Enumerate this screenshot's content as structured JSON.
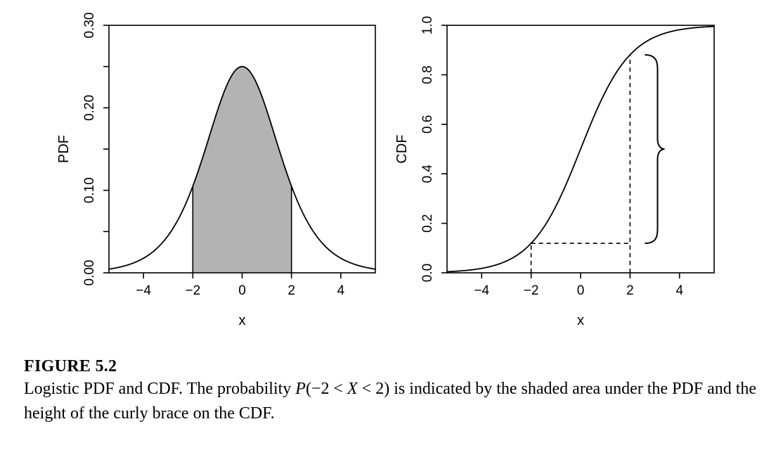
{
  "chart_data": [
    {
      "type": "line",
      "name": "logistic-pdf",
      "function": "pdf",
      "title": "",
      "xlabel": "x",
      "ylabel": "PDF",
      "xlim": [
        -5.4,
        5.4
      ],
      "ylim": [
        0,
        0.3
      ],
      "x_ticks": [
        -4,
        -2,
        0,
        2,
        4
      ],
      "x_tick_labels": [
        "−4",
        "−2",
        "0",
        "2",
        "4"
      ],
      "y_ticks": [
        0,
        0.05,
        0.1,
        0.15,
        0.2,
        0.25,
        0.3
      ],
      "y_tick_labels": [
        "0.00",
        "",
        "0.10",
        "",
        "0.20",
        "",
        "0.30"
      ],
      "shaded_interval": [
        -2,
        2
      ],
      "peak": {
        "x": 0,
        "y": 0.25
      },
      "series": [
        {
          "name": "PDF",
          "x": [
            -5.4,
            -5,
            -4,
            -3,
            -2,
            -1,
            0,
            1,
            2,
            3,
            4,
            5,
            5.4
          ],
          "y": [
            0.0044,
            0.0066,
            0.0177,
            0.0452,
            0.105,
            0.1966,
            0.25,
            0.1966,
            0.105,
            0.0452,
            0.0177,
            0.0066,
            0.0044
          ]
        }
      ]
    },
    {
      "type": "line",
      "name": "logistic-cdf",
      "function": "cdf",
      "title": "",
      "xlabel": "x",
      "ylabel": "CDF",
      "xlim": [
        -5.4,
        5.4
      ],
      "ylim": [
        0,
        1.0
      ],
      "x_ticks": [
        -4,
        -2,
        0,
        2,
        4
      ],
      "x_tick_labels": [
        "−4",
        "−2",
        "0",
        "2",
        "4"
      ],
      "y_ticks": [
        0,
        0.2,
        0.4,
        0.6,
        0.8,
        1.0
      ],
      "y_tick_labels": [
        "0.0",
        "0.2",
        "0.4",
        "0.6",
        "0.8",
        "1.0"
      ],
      "dashed_markers": {
        "x_low": -2,
        "x_high": 2,
        "y_low": 0.1192,
        "y_high": 0.8808
      },
      "brace": {
        "x": 2.6,
        "y_from": 0.1192,
        "y_to": 0.8808
      },
      "series": [
        {
          "name": "CDF",
          "x": [
            -5.4,
            -5,
            -4,
            -3,
            -2,
            -1,
            0,
            1,
            2,
            3,
            4,
            5,
            5.4
          ],
          "y": [
            0.0045,
            0.0067,
            0.018,
            0.0474,
            0.1192,
            0.2689,
            0.5,
            0.7311,
            0.8808,
            0.9526,
            0.982,
            0.9933,
            0.9955
          ]
        }
      ]
    }
  ],
  "caption": {
    "label": "FIGURE 5.2",
    "text_1": "Logistic PDF and CDF. The probability ",
    "math_P": "P",
    "math_open": "(−2 < ",
    "math_X": "X",
    "math_close": " < 2)",
    "text_2": " is indicated by the shaded area under the PDF and the height of the curly brace on the CDF."
  }
}
